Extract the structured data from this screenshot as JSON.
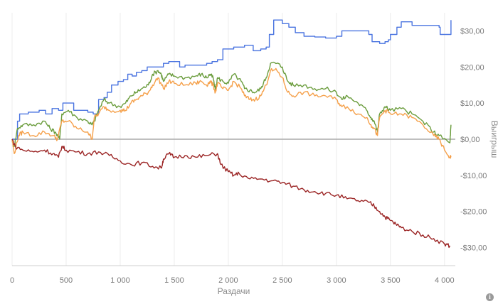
{
  "chart_data": {
    "type": "line",
    "xlabel": "Раздачи",
    "ylabel": "Выигрыш",
    "xlim": [
      0,
      4100
    ],
    "ylim": [
      -35,
      35
    ],
    "x_ticks": [
      0,
      500,
      1000,
      1500,
      2000,
      2500,
      3000,
      3500,
      4000
    ],
    "x_tick_labels": [
      "0",
      "500",
      "1 000",
      "1 500",
      "2 000",
      "2 500",
      "3 000",
      "3 500",
      "4 000"
    ],
    "y_ticks": [
      30,
      20,
      10,
      0,
      -10,
      -20,
      -30
    ],
    "y_tick_labels": [
      "$30,00",
      "$20,00",
      "$10,00",
      "$0,00",
      "-$10,00",
      "-$20,00",
      "-$30,00"
    ],
    "grid": "vertical",
    "series": [
      {
        "color": "#4a74e0",
        "step": true,
        "points": [
          [
            0,
            0
          ],
          [
            20,
            0
          ],
          [
            50,
            5
          ],
          [
            70,
            7
          ],
          [
            150,
            7.5
          ],
          [
            250,
            8
          ],
          [
            310,
            7
          ],
          [
            370,
            8.5
          ],
          [
            430,
            8
          ],
          [
            470,
            10
          ],
          [
            550,
            10
          ],
          [
            570,
            8
          ],
          [
            700,
            7.5
          ],
          [
            750,
            7
          ],
          [
            800,
            11
          ],
          [
            850,
            11.5
          ],
          [
            880,
            13
          ],
          [
            920,
            15
          ],
          [
            980,
            16
          ],
          [
            1030,
            16.5
          ],
          [
            1070,
            18
          ],
          [
            1110,
            17.5
          ],
          [
            1150,
            18.5
          ],
          [
            1200,
            19
          ],
          [
            1250,
            20
          ],
          [
            1400,
            21
          ],
          [
            1450,
            21.5
          ],
          [
            1550,
            20
          ],
          [
            1600,
            20.5
          ],
          [
            1700,
            20.5
          ],
          [
            1800,
            21
          ],
          [
            1850,
            21.5
          ],
          [
            1900,
            22
          ],
          [
            1950,
            25
          ],
          [
            2000,
            25
          ],
          [
            2050,
            25.5
          ],
          [
            2150,
            26
          ],
          [
            2200,
            26
          ],
          [
            2230,
            24.5
          ],
          [
            2300,
            25
          ],
          [
            2350,
            25.5
          ],
          [
            2380,
            29
          ],
          [
            2420,
            33
          ],
          [
            2500,
            32
          ],
          [
            2560,
            31
          ],
          [
            2620,
            29.5
          ],
          [
            2700,
            28.5
          ],
          [
            2800,
            28.3
          ],
          [
            2900,
            28
          ],
          [
            3000,
            28.5
          ],
          [
            3050,
            30
          ],
          [
            3200,
            30
          ],
          [
            3300,
            29
          ],
          [
            3330,
            27
          ],
          [
            3400,
            26.5
          ],
          [
            3450,
            27
          ],
          [
            3480,
            27.5
          ],
          [
            3500,
            29
          ],
          [
            3560,
            31
          ],
          [
            3600,
            32.5
          ],
          [
            3650,
            32.5
          ],
          [
            3700,
            31.5
          ],
          [
            3800,
            31.5
          ],
          [
            3900,
            31.5
          ],
          [
            3950,
            31
          ],
          [
            3960,
            29
          ],
          [
            4000,
            29
          ],
          [
            4050,
            29
          ],
          [
            4060,
            33
          ]
        ]
      },
      {
        "color": "#6a9c3c",
        "step": false,
        "points": [
          [
            0,
            0
          ],
          [
            20,
            -2
          ],
          [
            50,
            3
          ],
          [
            100,
            4
          ],
          [
            200,
            4
          ],
          [
            300,
            5
          ],
          [
            350,
            3
          ],
          [
            400,
            2
          ],
          [
            440,
            0
          ],
          [
            460,
            7
          ],
          [
            520,
            8
          ],
          [
            600,
            6
          ],
          [
            700,
            5
          ],
          [
            740,
            4
          ],
          [
            760,
            5
          ],
          [
            800,
            8
          ],
          [
            850,
            11
          ],
          [
            900,
            10
          ],
          [
            1000,
            9
          ],
          [
            1050,
            10
          ],
          [
            1100,
            12
          ],
          [
            1150,
            13
          ],
          [
            1200,
            14
          ],
          [
            1260,
            15
          ],
          [
            1300,
            18
          ],
          [
            1350,
            19
          ],
          [
            1380,
            18
          ],
          [
            1400,
            16
          ],
          [
            1450,
            18
          ],
          [
            1500,
            17.5
          ],
          [
            1600,
            17
          ],
          [
            1700,
            17.5
          ],
          [
            1750,
            18
          ],
          [
            1800,
            17
          ],
          [
            1830,
            18
          ],
          [
            1860,
            17
          ],
          [
            1880,
            13.5
          ],
          [
            1900,
            17
          ],
          [
            1950,
            16
          ],
          [
            2000,
            15.5
          ],
          [
            2050,
            18
          ],
          [
            2120,
            16
          ],
          [
            2150,
            14
          ],
          [
            2200,
            13.5
          ],
          [
            2250,
            13
          ],
          [
            2300,
            14
          ],
          [
            2350,
            17
          ],
          [
            2390,
            21
          ],
          [
            2450,
            21
          ],
          [
            2500,
            20
          ],
          [
            2550,
            16
          ],
          [
            2600,
            15
          ],
          [
            2700,
            15
          ],
          [
            2800,
            14
          ],
          [
            2900,
            14
          ],
          [
            3000,
            13
          ],
          [
            3050,
            11
          ],
          [
            3100,
            12
          ],
          [
            3200,
            10
          ],
          [
            3280,
            8
          ],
          [
            3320,
            6
          ],
          [
            3350,
            5
          ],
          [
            3380,
            2
          ],
          [
            3400,
            7
          ],
          [
            3450,
            9
          ],
          [
            3500,
            8
          ],
          [
            3600,
            8.5
          ],
          [
            3700,
            7
          ],
          [
            3800,
            5
          ],
          [
            3900,
            2
          ],
          [
            3950,
            1
          ],
          [
            4050,
            -1
          ],
          [
            4060,
            4
          ]
        ]
      },
      {
        "color": "#f5a04a",
        "step": false,
        "points": [
          [
            0,
            0
          ],
          [
            20,
            -4
          ],
          [
            60,
            1
          ],
          [
            100,
            2
          ],
          [
            200,
            1
          ],
          [
            300,
            2
          ],
          [
            380,
            1
          ],
          [
            420,
            0
          ],
          [
            460,
            5
          ],
          [
            520,
            5
          ],
          [
            600,
            3
          ],
          [
            700,
            2
          ],
          [
            740,
            0
          ],
          [
            760,
            6
          ],
          [
            800,
            7
          ],
          [
            850,
            9
          ],
          [
            900,
            8
          ],
          [
            1000,
            8
          ],
          [
            1050,
            8
          ],
          [
            1100,
            10
          ],
          [
            1150,
            11
          ],
          [
            1200,
            12
          ],
          [
            1260,
            13
          ],
          [
            1300,
            15
          ],
          [
            1350,
            17
          ],
          [
            1400,
            14
          ],
          [
            1450,
            16
          ],
          [
            1500,
            15.5
          ],
          [
            1600,
            15
          ],
          [
            1700,
            15.5
          ],
          [
            1750,
            16
          ],
          [
            1800,
            15
          ],
          [
            1830,
            16
          ],
          [
            1860,
            15
          ],
          [
            1880,
            13
          ],
          [
            1900,
            15.5
          ],
          [
            1950,
            14
          ],
          [
            2000,
            13.5
          ],
          [
            2050,
            16
          ],
          [
            2120,
            14
          ],
          [
            2150,
            12
          ],
          [
            2200,
            11
          ],
          [
            2250,
            11
          ],
          [
            2300,
            12
          ],
          [
            2350,
            15
          ],
          [
            2390,
            19
          ],
          [
            2450,
            19
          ],
          [
            2500,
            17
          ],
          [
            2550,
            13
          ],
          [
            2600,
            12
          ],
          [
            2700,
            13
          ],
          [
            2800,
            12
          ],
          [
            2900,
            12
          ],
          [
            3000,
            11
          ],
          [
            3050,
            9
          ],
          [
            3100,
            9
          ],
          [
            3200,
            7
          ],
          [
            3280,
            6
          ],
          [
            3320,
            4
          ],
          [
            3350,
            3
          ],
          [
            3380,
            1
          ],
          [
            3400,
            6
          ],
          [
            3450,
            8
          ],
          [
            3500,
            7
          ],
          [
            3600,
            7
          ],
          [
            3700,
            6
          ],
          [
            3800,
            4
          ],
          [
            3900,
            1
          ],
          [
            3950,
            0
          ],
          [
            4000,
            -3
          ],
          [
            4050,
            -5
          ],
          [
            4060,
            -5
          ]
        ]
      },
      {
        "color": "#9b2424",
        "step": false,
        "points": [
          [
            0,
            0
          ],
          [
            30,
            -2
          ],
          [
            100,
            -3
          ],
          [
            200,
            -3.5
          ],
          [
            300,
            -3
          ],
          [
            380,
            -4
          ],
          [
            430,
            -5
          ],
          [
            460,
            -2
          ],
          [
            500,
            -3
          ],
          [
            600,
            -3.5
          ],
          [
            700,
            -4
          ],
          [
            800,
            -3.5
          ],
          [
            900,
            -4.5
          ],
          [
            1000,
            -6
          ],
          [
            1100,
            -7
          ],
          [
            1200,
            -6.5
          ],
          [
            1300,
            -7.5
          ],
          [
            1380,
            -8
          ],
          [
            1400,
            -5.5
          ],
          [
            1450,
            -4
          ],
          [
            1500,
            -5
          ],
          [
            1600,
            -4.5
          ],
          [
            1700,
            -5
          ],
          [
            1800,
            -4.5
          ],
          [
            1900,
            -4
          ],
          [
            1930,
            -7
          ],
          [
            2000,
            -9
          ],
          [
            2050,
            -10
          ],
          [
            2100,
            -9.5
          ],
          [
            2200,
            -11
          ],
          [
            2300,
            -11
          ],
          [
            2400,
            -11.5
          ],
          [
            2500,
            -12
          ],
          [
            2600,
            -13
          ],
          [
            2700,
            -14
          ],
          [
            2800,
            -14.5
          ],
          [
            2900,
            -15
          ],
          [
            3000,
            -15.5
          ],
          [
            3100,
            -16.5
          ],
          [
            3200,
            -17
          ],
          [
            3300,
            -17.5
          ],
          [
            3350,
            -18.5
          ],
          [
            3400,
            -20
          ],
          [
            3450,
            -21.5
          ],
          [
            3500,
            -22.5
          ],
          [
            3550,
            -23.5
          ],
          [
            3600,
            -24.5
          ],
          [
            3700,
            -25.5
          ],
          [
            3800,
            -26.5
          ],
          [
            3900,
            -27.5
          ],
          [
            4000,
            -29
          ],
          [
            4050,
            -29.5
          ]
        ]
      }
    ]
  },
  "ui": {
    "info_icon": "info-icon",
    "info_glyph": "i"
  }
}
